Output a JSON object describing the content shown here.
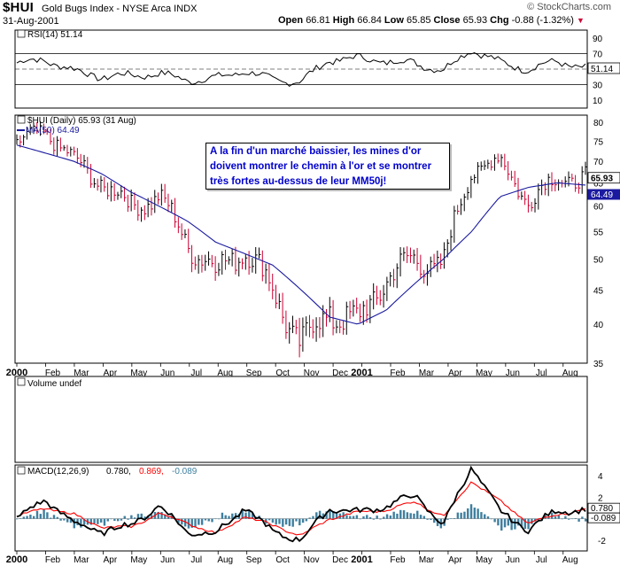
{
  "header": {
    "symbol": "$HUI",
    "name": "Gold Bugs Index - NYSE Arca INDX",
    "date": "31-Aug-2001",
    "open_label": "Open",
    "open": "66.81",
    "high_label": "High",
    "high": "66.84",
    "low_label": "Low",
    "low": "65.85",
    "close_label": "Close",
    "close": "65.93",
    "chg_label": "Chg",
    "chg": "-0.88 (-1.32%)",
    "brand": "© StockCharts.com"
  },
  "annotation": {
    "lines": [
      "A la fin d'un marché baissier, les mines d'or",
      "doivent montrer le chemin à l'or et se montrer",
      "très fortes au-dessus de leur MM50j!"
    ]
  },
  "colors": {
    "price": "#000000",
    "price_down": "#cc0033",
    "ma": "#1a1aa0",
    "annotation_text": "#0000cc",
    "macd": "#000000",
    "signal": "#ff0000",
    "histogram": "#3f7f9f",
    "label_box": "#1a1aa0"
  },
  "chart_data": [
    {
      "type": "line",
      "panel": "rsi",
      "title": "RSI(14) 51.14",
      "ylim": [
        0,
        100
      ],
      "yticks": [
        10,
        30,
        50,
        70,
        90
      ],
      "reference_lines": [
        30,
        70
      ],
      "last_value_label": "51.14",
      "x": [
        "2000-01",
        "2000-02",
        "2000-03",
        "2000-04",
        "2000-05",
        "2000-06",
        "2000-07",
        "2000-08",
        "2000-09",
        "2000-10",
        "2000-11",
        "2000-12",
        "2001-01",
        "2001-02",
        "2001-03",
        "2001-04",
        "2001-05",
        "2001-06",
        "2001-07",
        "2001-08",
        "2001-08-31"
      ],
      "values": [
        58,
        62,
        48,
        40,
        42,
        44,
        36,
        38,
        48,
        36,
        34,
        62,
        64,
        60,
        58,
        48,
        76,
        58,
        50,
        60,
        51
      ]
    },
    {
      "type": "line",
      "panel": "price",
      "series": [
        {
          "name": "$HUI (Daily) 65.93 (31 Aug)",
          "values": [
            74,
            78,
            70,
            65,
            60,
            62,
            53,
            48,
            52,
            45,
            37,
            42,
            40,
            47,
            50,
            49,
            68,
            70,
            61,
            66,
            66
          ]
        },
        {
          "name": "MA(50) 64.49",
          "values": [
            74,
            72,
            70,
            67,
            63,
            60,
            57,
            53,
            51,
            49,
            45,
            41,
            40,
            42,
            46,
            50,
            55,
            62,
            64,
            65,
            64.5
          ]
        }
      ],
      "x": [
        "2000-01",
        "2000-02",
        "2000-03",
        "2000-04",
        "2000-05",
        "2000-06",
        "2000-07",
        "2000-08",
        "2000-09",
        "2000-10",
        "2000-11",
        "2000-12",
        "2001-01",
        "2001-02",
        "2001-03",
        "2001-04",
        "2001-05",
        "2001-06",
        "2001-07",
        "2001-08",
        "2001-08-31"
      ],
      "ylim": [
        35,
        82
      ],
      "yscale": "log",
      "yticks": [
        35,
        40,
        45,
        50,
        55,
        60,
        65,
        70,
        75,
        80
      ],
      "last_value_labels": [
        "65.93",
        "64.49"
      ],
      "xtick_labels": [
        "2000",
        "Feb",
        "Mar",
        "Apr",
        "May",
        "Jun",
        "Jul",
        "Aug",
        "Sep",
        "Oct",
        "Nov",
        "Dec",
        "2001",
        "Feb",
        "Mar",
        "Apr",
        "May",
        "Jun",
        "Jul",
        "Aug"
      ]
    },
    {
      "type": "bar",
      "panel": "volume",
      "title": "Volume undef"
    },
    {
      "type": "line",
      "panel": "macd",
      "title": "MACD(12,26,9)",
      "values_label": [
        "0.780",
        "0.869",
        "-0.089"
      ],
      "ylim": [
        -3,
        5
      ],
      "yticks": [
        -2,
        0,
        2,
        4
      ],
      "x": [
        "2000-01",
        "2000-02",
        "2000-03",
        "2000-04",
        "2000-05",
        "2000-06",
        "2000-07",
        "2000-08",
        "2000-09",
        "2000-10",
        "2000-11",
        "2000-12",
        "2001-01",
        "2001-02",
        "2001-03",
        "2001-04",
        "2001-05",
        "2001-06",
        "2001-07",
        "2001-08",
        "2001-08-31"
      ],
      "series": [
        {
          "name": "MACD",
          "values": [
            0.0,
            1.8,
            -0.4,
            -1.2,
            -0.6,
            1.2,
            -1.2,
            -1.4,
            1.0,
            -1.2,
            -2.0,
            1.0,
            0.6,
            1.2,
            2.2,
            -0.6,
            4.9,
            0.6,
            -1.0,
            0.8,
            0.78
          ]
        },
        {
          "name": "Signal",
          "values": [
            0.2,
            1.0,
            0.4,
            -0.8,
            -0.8,
            0.5,
            -0.4,
            -1.4,
            0.2,
            -0.6,
            -1.6,
            0.0,
            0.6,
            0.8,
            1.6,
            0.2,
            3.5,
            1.6,
            -0.4,
            0.4,
            0.869
          ]
        },
        {
          "name": "Histogram",
          "values": [
            -0.2,
            0.8,
            -0.8,
            -0.4,
            0.2,
            0.7,
            -0.8,
            0.0,
            0.8,
            -0.6,
            -0.4,
            1.0,
            0.0,
            0.4,
            0.6,
            -0.8,
            1.4,
            -1.0,
            -0.6,
            0.4,
            -0.089
          ]
        }
      ],
      "last_value_labels": [
        "0.780",
        "-0.089"
      ],
      "xtick_labels": [
        "2000",
        "Feb",
        "Mar",
        "Apr",
        "May",
        "Jun",
        "Jul",
        "Aug",
        "Sep",
        "Oct",
        "Nov",
        "Dec",
        "2001",
        "Feb",
        "Mar",
        "Apr",
        "May",
        "Jun",
        "Jul",
        "Aug"
      ]
    }
  ]
}
